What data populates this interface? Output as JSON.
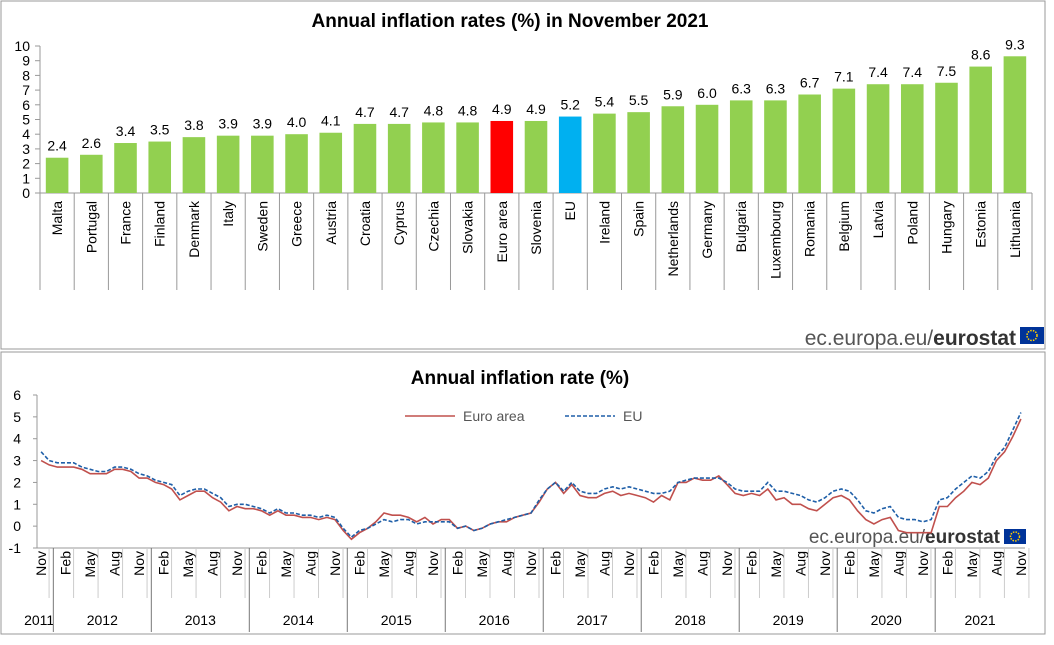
{
  "chart_data": [
    {
      "type": "bar",
      "title": "Annual inflation rates (%) in November 2021",
      "categories": [
        "Malta",
        "Portugal",
        "France",
        "Finland",
        "Denmark",
        "Italy",
        "Sweden",
        "Greece",
        "Austria",
        "Croatia",
        "Cyprus",
        "Czechia",
        "Slovakia",
        "Euro area",
        "Slovenia",
        "EU",
        "Ireland",
        "Spain",
        "Netherlands",
        "Germany",
        "Bulgaria",
        "Luxembourg",
        "Romania",
        "Belgium",
        "Latvia",
        "Poland",
        "Hungary",
        "Estonia",
        "Lithuania"
      ],
      "values": [
        2.4,
        2.6,
        3.4,
        3.5,
        3.8,
        3.9,
        3.9,
        4.0,
        4.1,
        4.7,
        4.7,
        4.8,
        4.8,
        4.9,
        4.9,
        5.2,
        5.4,
        5.5,
        5.9,
        6.0,
        6.3,
        6.3,
        6.7,
        7.1,
        7.4,
        7.4,
        7.5,
        8.6,
        9.3
      ],
      "value_labels": [
        "2.4",
        "2.6",
        "3.4",
        "3.5",
        "3.8",
        "3.9",
        "3.9",
        "4.0",
        "4.1",
        "4.7",
        "4.7",
        "4.8",
        "4.8",
        "4.9",
        "4.9",
        "5.2",
        "5.4",
        "5.5",
        "5.9",
        "6.0",
        "6.3",
        "6.3",
        "6.7",
        "7.1",
        "7.4",
        "7.4",
        "7.5",
        "8.6",
        "9.3"
      ],
      "colors": [
        "#92d050",
        "#92d050",
        "#92d050",
        "#92d050",
        "#92d050",
        "#92d050",
        "#92d050",
        "#92d050",
        "#92d050",
        "#92d050",
        "#92d050",
        "#92d050",
        "#92d050",
        "#ff0000",
        "#92d050",
        "#00b0f0",
        "#92d050",
        "#92d050",
        "#92d050",
        "#92d050",
        "#92d050",
        "#92d050",
        "#92d050",
        "#92d050",
        "#92d050",
        "#92d050",
        "#92d050",
        "#92d050",
        "#92d050"
      ],
      "ylim": [
        0,
        10
      ],
      "yticks": [
        0,
        1,
        2,
        3,
        4,
        5,
        6,
        7,
        8,
        9,
        10
      ],
      "source": {
        "prefix": "ec.europa.eu/",
        "brand": "eurostat"
      }
    },
    {
      "type": "line",
      "title": "Annual inflation rate (%)",
      "categories": [
        "Nov",
        null,
        null,
        "Feb",
        null,
        null,
        "May",
        null,
        null,
        "Aug",
        null,
        null,
        "Nov",
        null,
        null,
        "Feb",
        null,
        null,
        "May",
        null,
        null,
        "Aug",
        null,
        null,
        "Nov",
        null,
        null,
        "Feb",
        null,
        null,
        "May",
        null,
        null,
        "Aug",
        null,
        null,
        "Nov",
        null,
        null,
        "Feb",
        null,
        null,
        "May",
        null,
        null,
        "Aug",
        null,
        null,
        "Nov",
        null,
        null,
        "Feb",
        null,
        null,
        "May",
        null,
        null,
        "Aug",
        null,
        null,
        "Nov",
        null,
        null,
        "Feb",
        null,
        null,
        "May",
        null,
        null,
        "Aug",
        null,
        null,
        "Nov",
        null,
        null,
        "Feb",
        null,
        null,
        "May",
        null,
        null,
        "Aug",
        null,
        null,
        "Nov",
        null,
        null,
        "Feb",
        null,
        null,
        "May",
        null,
        null,
        "Aug",
        null,
        null,
        "Nov",
        null,
        null,
        "Feb",
        null,
        null,
        "May",
        null,
        null,
        "Aug",
        null,
        null,
        "Nov",
        null,
        null,
        "Feb",
        null,
        null,
        "May",
        null,
        null,
        "Aug",
        null,
        null,
        "Nov"
      ],
      "years": [
        "2011",
        "2012",
        "2013",
        "2014",
        "2015",
        "2016",
        "2017",
        "2018",
        "2019",
        "2020",
        "2021"
      ],
      "series": [
        {
          "name": "Euro area",
          "color": "#c0504d",
          "dashed": false,
          "values": [
            3.0,
            2.8,
            2.7,
            2.7,
            2.7,
            2.6,
            2.4,
            2.4,
            2.4,
            2.6,
            2.6,
            2.5,
            2.2,
            2.2,
            2.0,
            1.9,
            1.7,
            1.2,
            1.4,
            1.6,
            1.6,
            1.3,
            1.1,
            0.7,
            0.9,
            0.8,
            0.8,
            0.7,
            0.5,
            0.7,
            0.5,
            0.5,
            0.4,
            0.4,
            0.3,
            0.4,
            0.3,
            -0.2,
            -0.6,
            -0.3,
            -0.1,
            0.2,
            0.6,
            0.5,
            0.5,
            0.4,
            0.2,
            0.4,
            0.1,
            0.3,
            0.3,
            -0.1,
            0.0,
            -0.2,
            -0.1,
            0.1,
            0.2,
            0.2,
            0.4,
            0.5,
            0.6,
            1.1,
            1.7,
            2.0,
            1.5,
            1.9,
            1.4,
            1.3,
            1.3,
            1.5,
            1.6,
            1.4,
            1.5,
            1.4,
            1.3,
            1.1,
            1.4,
            1.2,
            2.0,
            2.0,
            2.2,
            2.1,
            2.1,
            2.3,
            1.9,
            1.5,
            1.4,
            1.5,
            1.4,
            1.7,
            1.2,
            1.3,
            1.0,
            1.0,
            0.8,
            0.7,
            1.0,
            1.3,
            1.4,
            1.2,
            0.7,
            0.3,
            0.1,
            0.3,
            0.4,
            -0.2,
            -0.3,
            -0.3,
            -0.3,
            -0.3,
            0.9,
            0.9,
            1.3,
            1.6,
            2.0,
            1.9,
            2.2,
            3.0,
            3.4,
            4.1,
            4.9
          ]
        },
        {
          "name": "EU",
          "color": "#1f5fa8",
          "dashed": true,
          "values": [
            3.4,
            3.0,
            2.9,
            2.9,
            2.9,
            2.7,
            2.6,
            2.5,
            2.5,
            2.7,
            2.7,
            2.6,
            2.4,
            2.3,
            2.1,
            2.0,
            1.9,
            1.4,
            1.6,
            1.7,
            1.7,
            1.5,
            1.3,
            0.9,
            1.0,
            1.0,
            0.9,
            0.8,
            0.6,
            0.8,
            0.6,
            0.6,
            0.5,
            0.5,
            0.4,
            0.5,
            0.4,
            -0.1,
            -0.5,
            -0.2,
            -0.1,
            0.1,
            0.3,
            0.2,
            0.3,
            0.3,
            0.1,
            0.2,
            0.2,
            0.2,
            0.2,
            -0.1,
            0.0,
            -0.2,
            -0.1,
            0.1,
            0.2,
            0.3,
            0.4,
            0.5,
            0.6,
            1.2,
            1.7,
            2.0,
            1.6,
            2.0,
            1.6,
            1.5,
            1.5,
            1.7,
            1.8,
            1.7,
            1.8,
            1.7,
            1.6,
            1.5,
            1.5,
            1.6,
            2.0,
            2.1,
            2.2,
            2.2,
            2.2,
            2.2,
            2.0,
            1.7,
            1.6,
            1.6,
            1.6,
            2.0,
            1.6,
            1.6,
            1.5,
            1.4,
            1.2,
            1.1,
            1.3,
            1.6,
            1.7,
            1.6,
            1.2,
            0.7,
            0.6,
            0.8,
            0.9,
            0.4,
            0.3,
            0.3,
            0.2,
            0.3,
            1.2,
            1.3,
            1.7,
            2.0,
            2.3,
            2.2,
            2.5,
            3.2,
            3.6,
            4.4,
            5.2
          ]
        }
      ],
      "ylim": [
        -1,
        6
      ],
      "yticks": [
        -1,
        0,
        1,
        2,
        3,
        4,
        5,
        6
      ],
      "source": {
        "prefix": "ec.europa.eu/",
        "brand": "eurostat"
      }
    }
  ]
}
